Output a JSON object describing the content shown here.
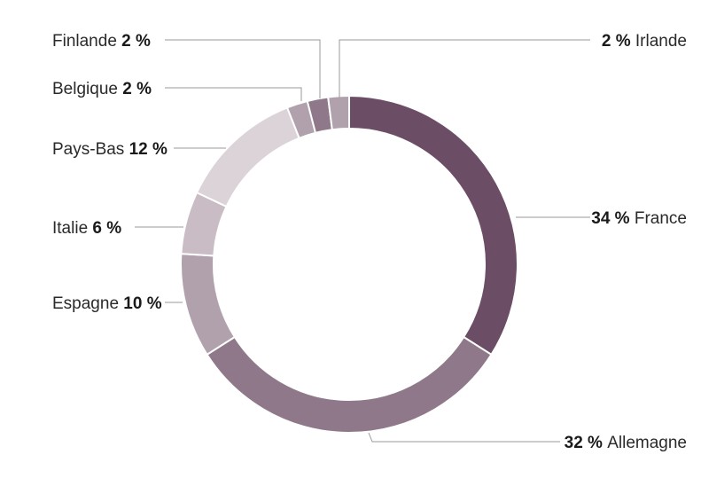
{
  "chart_data": {
    "type": "pie",
    "variant": "donut",
    "categories": [
      "France",
      "Allemagne",
      "Espagne",
      "Italie",
      "Pays-Bas",
      "Belgique",
      "Finlande",
      "Irlande"
    ],
    "values": [
      34,
      32,
      10,
      6,
      12,
      2,
      2,
      2
    ],
    "value_labels": [
      "34 %",
      "32 %",
      "10 %",
      "6 %",
      "12 %",
      "2 %",
      "2 %",
      "2 %"
    ],
    "colors": [
      "#6b4d65",
      "#8f7889",
      "#b0a1ac",
      "#c9bcc5",
      "#dcd3d9",
      "#b0a1ac",
      "#8f7889",
      "#b0a1ac"
    ],
    "label_side": [
      "right",
      "right",
      "left",
      "left",
      "left",
      "left",
      "left",
      "right"
    ],
    "title": "",
    "legend": "none"
  }
}
